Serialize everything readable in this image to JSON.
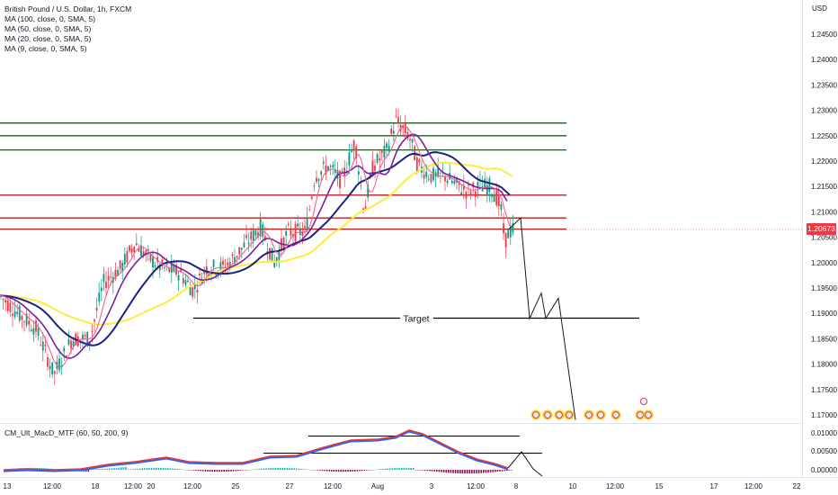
{
  "legend": {
    "symbol": "British Pound / U.S. Dollar, 1h, FXCM",
    "ma100": "MA (100, close, 0, SMA, 5)",
    "ma50": "MA (50, close, 0, SMA, 5)",
    "ma20": "MA (20, close, 0, SMA, 5)",
    "ma9": "MA (9, close, 0, SMA, 5)"
  },
  "currency": "USD",
  "current_price": "1.20673",
  "target_label": "Target",
  "macd_legend": "CM_Ult_MacD_MTF (60, 50, 200, 9)",
  "colors": {
    "up": "#089981",
    "down": "#f23645",
    "ma100": "#ffeb3b",
    "ma50": "#1a237e",
    "ma20": "#7b1fa2",
    "ma9": "#f06292",
    "support": "#b71c1c",
    "resistance": "#1b5e20"
  },
  "chart_data": {
    "type": "candlestick",
    "price_axis_labels": [
      "1.24500",
      "1.24000",
      "1.23500",
      "1.23000",
      "1.22500",
      "1.22000",
      "1.21500",
      "1.21000",
      "1.20500",
      "1.20000",
      "1.19500",
      "1.19000",
      "1.18500",
      "1.18000",
      "1.17500",
      "1.17000"
    ],
    "macd_axis_labels": [
      "0.01000",
      "0.00500",
      "0.00000"
    ],
    "time_axis_labels": [
      "13",
      "12:00",
      "18",
      "12:00",
      "20",
      "12:00",
      "25",
      "27",
      "12:00",
      "Aug",
      "3",
      "12:00",
      "8",
      "10",
      "12:00",
      "15",
      "17",
      "12:00",
      "22"
    ],
    "horizontal_levels": {
      "resistance_green": [
        1.2275,
        1.225,
        1.2222
      ],
      "red": [
        1.2133,
        1.2088,
        1.2066
      ],
      "target": 1.189
    },
    "projection_path_prices": [
      1.2066,
      1.2088,
      1.189,
      1.194,
      1.189,
      1.193,
      1.169
    ]
  }
}
